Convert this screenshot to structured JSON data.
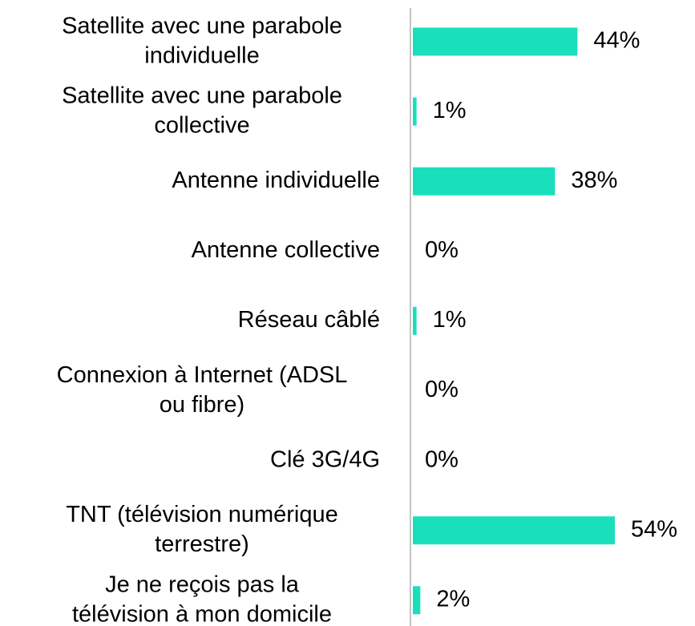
{
  "chart_data": {
    "type": "bar",
    "orientation": "horizontal",
    "categories": [
      "Satellite avec une parabole\nindividuelle",
      "Satellite avec une parabole\ncollective",
      "Antenne individuelle",
      "Antenne collective",
      "Réseau câblé",
      "Connexion à Internet (ADSL\nou fibre)",
      "Clé 3G/4G",
      "TNT (télévision numérique\nterrestre)",
      "Je ne reçois pas la\ntélévision à mon domicile"
    ],
    "values": [
      44,
      1,
      38,
      0,
      1,
      0,
      0,
      54,
      2
    ],
    "value_labels": [
      "44%",
      "1%",
      "38%",
      "0%",
      "1%",
      "0%",
      "0%",
      "54%",
      "2%"
    ],
    "color": "#19dfbd",
    "xlim": [
      0,
      75
    ]
  }
}
